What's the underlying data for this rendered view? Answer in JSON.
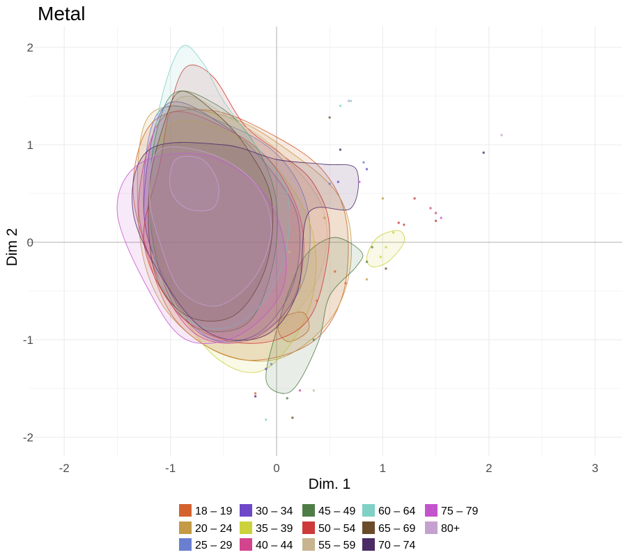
{
  "chart_data": {
    "type": "density-contour-scatter",
    "title": "Metal",
    "xlabel": "Dim. 1",
    "ylabel": "Dim 2",
    "xlim": [
      -2.2,
      3.25
    ],
    "ylim": [
      -2.2,
      2.2
    ],
    "x_ticks": [
      -2,
      -1,
      0,
      1,
      2,
      3
    ],
    "y_ticks": [
      -2,
      -1,
      0,
      1,
      2
    ],
    "grid": true,
    "legend_position": "bottom",
    "legend_columns": 5,
    "series": [
      {
        "name": "18 – 19",
        "color": "#d4622f",
        "contours": [
          [
            [
              -1.15,
              1.25
            ],
            [
              -0.6,
              1.35
            ],
            [
              0.0,
              1.08
            ],
            [
              0.45,
              0.72
            ],
            [
              0.66,
              0.2
            ],
            [
              0.62,
              -0.55
            ],
            [
              0.3,
              -1.05
            ],
            [
              -0.35,
              -1.2
            ],
            [
              -0.95,
              -0.8
            ],
            [
              -1.25,
              0.0
            ],
            [
              -1.35,
              0.65
            ]
          ],
          [
            [
              0.05,
              -0.78
            ],
            [
              0.25,
              -0.72
            ],
            [
              0.3,
              -0.9
            ],
            [
              0.12,
              -1.02
            ],
            [
              0.02,
              -0.92
            ]
          ]
        ],
        "points": [
          [
            0.55,
            -0.3
          ],
          [
            0.65,
            -0.42
          ],
          [
            -0.2,
            -1.55
          ],
          [
            0.38,
            -0.6
          ]
        ]
      },
      {
        "name": "20 – 24",
        "color": "#c49a45",
        "contours": [
          [
            [
              -1.2,
              1.3
            ],
            [
              -0.5,
              1.3
            ],
            [
              0.1,
              0.95
            ],
            [
              0.6,
              0.45
            ],
            [
              0.7,
              -0.2
            ],
            [
              0.5,
              -0.8
            ],
            [
              0.0,
              -1.2
            ],
            [
              -0.6,
              -1.1
            ],
            [
              -1.1,
              -0.6
            ],
            [
              -1.3,
              0.2
            ]
          ]
        ],
        "points": [
          [
            1.0,
            0.45
          ],
          [
            0.85,
            -0.38
          ],
          [
            0.22,
            -0.45
          ],
          [
            0.45,
            0.25
          ]
        ]
      },
      {
        "name": "25 – 29",
        "color": "#6a7fd0",
        "contours": [
          [
            [
              -1.1,
              1.35
            ],
            [
              -0.45,
              1.2
            ],
            [
              0.05,
              0.85
            ],
            [
              0.3,
              0.3
            ],
            [
              0.25,
              -0.4
            ],
            [
              -0.1,
              -0.9
            ],
            [
              -0.6,
              -1.0
            ],
            [
              -1.0,
              -0.5
            ],
            [
              -1.25,
              0.3
            ]
          ]
        ],
        "points": [
          [
            0.82,
            0.82
          ],
          [
            -0.05,
            -1.25
          ],
          [
            0.5,
            0.6
          ]
        ]
      },
      {
        "name": "30 – 34",
        "color": "#6e48c8",
        "contours": [
          [
            [
              -1.05,
              1.4
            ],
            [
              -0.5,
              1.2
            ],
            [
              -0.1,
              0.8
            ],
            [
              0.2,
              0.25
            ],
            [
              0.15,
              -0.45
            ],
            [
              -0.2,
              -0.95
            ],
            [
              -0.7,
              -0.95
            ],
            [
              -1.05,
              -0.4
            ],
            [
              -1.25,
              0.35
            ]
          ]
        ],
        "points": [
          [
            0.85,
            0.75
          ],
          [
            0.58,
            0.62
          ],
          [
            -0.1,
            -1.3
          ]
        ]
      },
      {
        "name": "35 – 39",
        "color": "#cbd23c",
        "contours": [
          [
            [
              0.85,
              -0.15
            ],
            [
              0.95,
              0.05
            ],
            [
              1.15,
              0.12
            ],
            [
              1.2,
              0.0
            ],
            [
              1.05,
              -0.2
            ],
            [
              0.9,
              -0.25
            ]
          ],
          [
            [
              -1.0,
              1.2
            ],
            [
              -0.4,
              1.1
            ],
            [
              0.05,
              0.7
            ],
            [
              0.35,
              0.05
            ],
            [
              0.3,
              -0.7
            ],
            [
              -0.1,
              -1.3
            ],
            [
              -0.55,
              -1.2
            ],
            [
              -0.95,
              -0.6
            ],
            [
              -1.2,
              0.3
            ]
          ]
        ],
        "points": [
          [
            1.03,
            -0.05
          ],
          [
            0.98,
            -0.15
          ],
          [
            1.1,
            0.1
          ]
        ]
      },
      {
        "name": "40 – 44",
        "color": "#d4448c",
        "contours": [
          [
            [
              -1.05,
              1.3
            ],
            [
              -0.45,
              1.15
            ],
            [
              0.0,
              0.75
            ],
            [
              0.25,
              0.1
            ],
            [
              0.15,
              -0.6
            ],
            [
              -0.25,
              -1.0
            ],
            [
              -0.75,
              -0.95
            ],
            [
              -1.1,
              -0.4
            ],
            [
              -1.3,
              0.4
            ]
          ]
        ],
        "points": [
          [
            1.45,
            0.35
          ],
          [
            1.5,
            0.3
          ],
          [
            0.22,
            -1.52
          ]
        ]
      },
      {
        "name": "45 – 49",
        "color": "#4f7d46",
        "contours": [
          [
            [
              0.3,
              -0.1
            ],
            [
              0.55,
              0.05
            ],
            [
              0.8,
              -0.1
            ],
            [
              0.75,
              -0.25
            ],
            [
              0.5,
              -0.55
            ],
            [
              0.4,
              -1.0
            ],
            [
              0.2,
              -1.45
            ],
            [
              0.05,
              -1.55
            ],
            [
              -0.1,
              -1.4
            ],
            [
              0.0,
              -0.9
            ],
            [
              0.15,
              -0.4
            ]
          ],
          [
            [
              -1.0,
              1.5
            ],
            [
              -0.55,
              1.4
            ],
            [
              -0.2,
              1.0
            ],
            [
              0.0,
              0.4
            ],
            [
              -0.05,
              -0.3
            ],
            [
              -0.3,
              -0.85
            ],
            [
              -0.8,
              -0.85
            ],
            [
              -1.1,
              -0.3
            ],
            [
              -1.2,
              0.6
            ]
          ]
        ],
        "points": [
          [
            0.9,
            -0.05
          ],
          [
            0.85,
            -0.2
          ],
          [
            0.1,
            -1.6
          ],
          [
            0.35,
            -1.0
          ]
        ]
      },
      {
        "name": "50 – 54",
        "color": "#cd3a3a",
        "contours": [
          [
            [
              -0.85,
              1.8
            ],
            [
              -0.6,
              1.7
            ],
            [
              -0.3,
              1.2
            ],
            [
              0.05,
              0.9
            ],
            [
              0.35,
              0.6
            ],
            [
              0.5,
              0.1
            ],
            [
              0.35,
              -0.7
            ],
            [
              0.0,
              -1.0
            ],
            [
              -0.5,
              -1.0
            ],
            [
              -0.95,
              -0.7
            ],
            [
              -1.25,
              0.0
            ],
            [
              -1.1,
              0.8
            ],
            [
              -1.0,
              1.4
            ]
          ]
        ],
        "points": [
          [
            1.15,
            0.2
          ],
          [
            1.3,
            0.45
          ],
          [
            1.5,
            0.22
          ],
          [
            1.2,
            0.18
          ]
        ]
      },
      {
        "name": "55 – 59",
        "color": "#c8b48e",
        "contours": [
          [
            [
              -0.95,
              1.45
            ],
            [
              -0.4,
              1.25
            ],
            [
              0.1,
              0.85
            ],
            [
              0.45,
              0.3
            ],
            [
              0.4,
              -0.35
            ],
            [
              0.0,
              -0.9
            ],
            [
              -0.55,
              -1.0
            ],
            [
              -1.0,
              -0.55
            ],
            [
              -1.2,
              0.3
            ]
          ]
        ],
        "points": [
          [
            0.35,
            -1.52
          ],
          [
            0.42,
            -0.28
          ],
          [
            0.12,
            -0.1
          ]
        ]
      },
      {
        "name": "60 – 64",
        "color": "#7fd1c6",
        "contours": [
          [
            [
              -0.9,
              2.0
            ],
            [
              -0.7,
              1.85
            ],
            [
              -0.5,
              1.45
            ],
            [
              -0.2,
              1.0
            ],
            [
              0.1,
              0.5
            ],
            [
              0.05,
              -0.25
            ],
            [
              -0.3,
              -0.8
            ],
            [
              -0.75,
              -0.85
            ],
            [
              -1.1,
              -0.4
            ],
            [
              -1.2,
              0.5
            ],
            [
              -1.1,
              1.4
            ]
          ]
        ],
        "points": [
          [
            0.6,
            1.4
          ],
          [
            -0.1,
            -1.82
          ],
          [
            0.7,
            1.45
          ]
        ]
      },
      {
        "name": "65 – 69",
        "color": "#6a4b2a",
        "contours": [
          [
            [
              -0.9,
              1.55
            ],
            [
              -0.6,
              1.35
            ],
            [
              -0.3,
              1.0
            ],
            [
              -0.05,
              0.45
            ],
            [
              -0.1,
              -0.25
            ],
            [
              -0.4,
              -0.75
            ],
            [
              -0.85,
              -0.75
            ],
            [
              -1.15,
              -0.3
            ],
            [
              -1.2,
              0.55
            ],
            [
              -1.05,
              1.25
            ]
          ]
        ],
        "points": [
          [
            0.5,
            1.28
          ],
          [
            0.15,
            -1.8
          ],
          [
            1.03,
            -0.27
          ]
        ]
      },
      {
        "name": "70 – 74",
        "color": "#4b2a66",
        "contours": [
          [
            [
              -1.2,
              0.95
            ],
            [
              -0.5,
              1.0
            ],
            [
              0.0,
              0.85
            ],
            [
              0.45,
              0.8
            ],
            [
              0.75,
              0.75
            ],
            [
              0.7,
              0.35
            ],
            [
              0.3,
              0.3
            ],
            [
              0.2,
              -0.5
            ],
            [
              -0.1,
              -0.95
            ],
            [
              -0.6,
              -0.95
            ],
            [
              -1.0,
              -0.5
            ],
            [
              -1.35,
              0.3
            ]
          ]
        ],
        "points": [
          [
            1.95,
            0.92
          ],
          [
            0.6,
            0.95
          ],
          [
            -0.2,
            -1.58
          ]
        ]
      },
      {
        "name": "75 – 79",
        "color": "#c454cc",
        "contours": [
          [
            [
              -1.3,
              0.8
            ],
            [
              -0.7,
              0.9
            ],
            [
              -0.2,
              0.6
            ],
            [
              0.05,
              0.1
            ],
            [
              0.05,
              -0.5
            ],
            [
              -0.35,
              -0.95
            ],
            [
              -0.85,
              -1.0
            ],
            [
              -1.2,
              -0.5
            ],
            [
              -1.5,
              0.3
            ]
          ]
        ],
        "points": [
          [
            1.55,
            0.25
          ],
          [
            0.78,
            0.62
          ]
        ]
      },
      {
        "name": "80+",
        "color": "#c5a1cf",
        "contours": [
          [
            [
              -1.1,
              0.95
            ],
            [
              -0.6,
              0.9
            ],
            [
              -0.2,
              0.6
            ],
            [
              -0.05,
              0.15
            ],
            [
              -0.2,
              -0.35
            ],
            [
              -0.55,
              -0.65
            ],
            [
              -0.9,
              -0.5
            ],
            [
              -1.1,
              0.0
            ],
            [
              -1.2,
              0.5
            ]
          ],
          [
            [
              -0.95,
              0.85
            ],
            [
              -0.7,
              0.85
            ],
            [
              -0.55,
              0.6
            ],
            [
              -0.6,
              0.35
            ],
            [
              -0.85,
              0.35
            ],
            [
              -1.0,
              0.55
            ]
          ]
        ],
        "points": [
          [
            2.12,
            1.1
          ],
          [
            0.68,
            1.45
          ]
        ]
      }
    ]
  }
}
